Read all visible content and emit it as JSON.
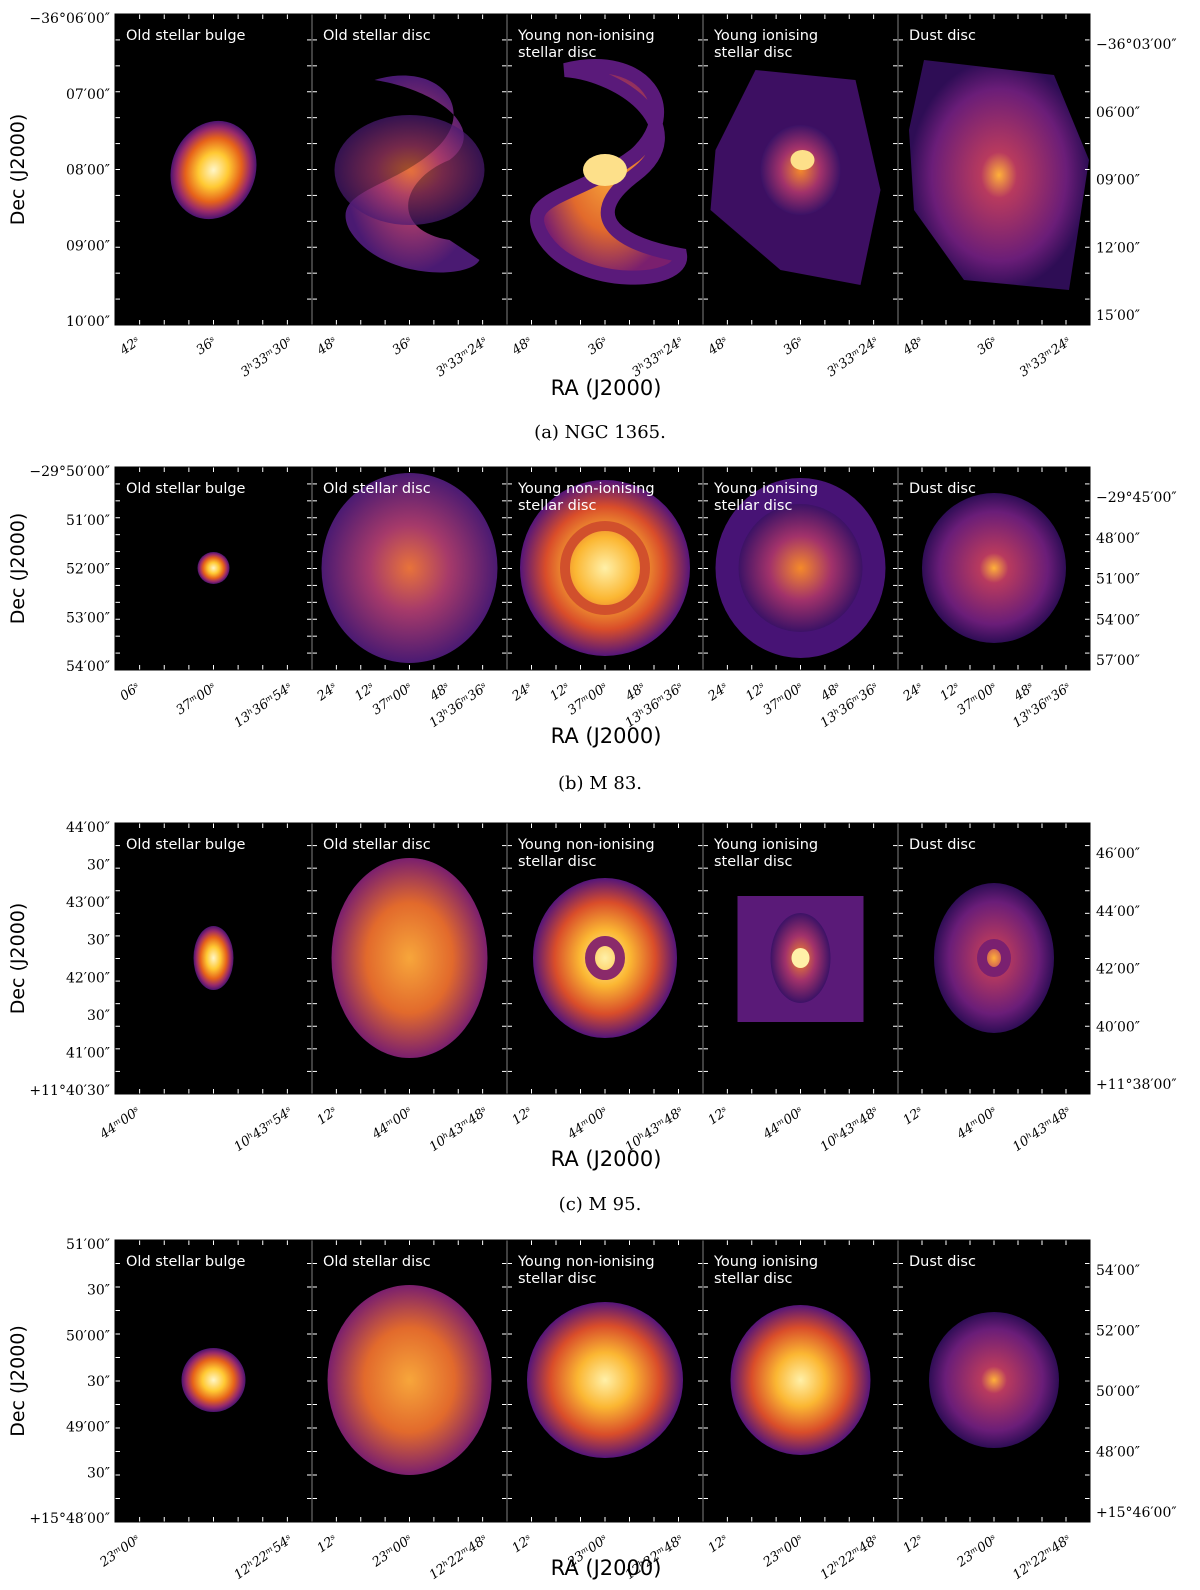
{
  "x_axis_label": "RA (J2000)",
  "y_axis_label": "Dec (J2000)",
  "colors": {
    "panel_bg": "#000000",
    "divider": "#555555",
    "tick": "#ffffff",
    "label": "#ffffff"
  },
  "panel_titles": [
    "Old stellar bulge",
    "Old stellar disc",
    "Young non-ionising stellar disc",
    "Young ionising stellar disc",
    "Dust disc"
  ],
  "rows": [
    {
      "caption": "(a) NGC 1365.",
      "titles": [
        [
          "Old stellar bulge"
        ],
        [
          "Old stellar disc"
        ],
        [
          "Young non-ionising",
          "stellar disc"
        ],
        [
          "Young ionising",
          "stellar disc"
        ],
        [
          "Dust disc"
        ]
      ],
      "left_ticks": [
        "−36°06′00″",
        "07′00″",
        "08′00″",
        "09′00″",
        "10′00″"
      ],
      "right_ticks": [
        "−36°03′00″",
        "06′00″",
        "09′00″",
        "12′00″",
        "15′00″"
      ],
      "bottom_ticks": [
        [
          "42ˢ",
          "36ˢ",
          "3ʰ33ᵐ30ˢ"
        ],
        [
          "48ˢ",
          "36ˢ",
          "3ʰ33ᵐ24ˢ"
        ],
        [
          "48ˢ",
          "36ˢ",
          "3ʰ33ᵐ24ˢ"
        ],
        [
          "48ˢ",
          "36ˢ",
          "3ʰ33ᵐ24ˢ"
        ],
        [
          "48ˢ",
          "36ˢ",
          "3ʰ33ᵐ24ˢ"
        ]
      ]
    },
    {
      "caption": "(b) M 83.",
      "titles": [
        [
          "Old stellar bulge"
        ],
        [
          "Old stellar disc"
        ],
        [
          "Young non-ionising",
          "stellar disc"
        ],
        [
          "Young ionising",
          "stellar disc"
        ],
        [
          "Dust disc"
        ]
      ],
      "left_ticks": [
        "−29°50′00″",
        "51′00″",
        "52′00″",
        "53′00″",
        "54′00″"
      ],
      "right_ticks": [
        "−29°45′00″",
        "48′00″",
        "51′00″",
        "54′00″",
        "57′00″"
      ],
      "bottom_ticks": [
        [
          "06ˢ",
          "37ᵐ00ˢ",
          "13ʰ36ᵐ54ˢ"
        ],
        [
          "24ˢ",
          "12ˢ",
          "37ᵐ00ˢ",
          "48ˢ",
          "13ʰ36ᵐ36ˢ"
        ],
        [
          "24ˢ",
          "12ˢ",
          "37ᵐ00ˢ",
          "48ˢ",
          "13ʰ36ᵐ36ˢ"
        ],
        [
          "24ˢ",
          "12ˢ",
          "37ᵐ00ˢ",
          "48ˢ",
          "13ʰ36ᵐ36ˢ"
        ],
        [
          "24ˢ",
          "12ˢ",
          "37ᵐ00ˢ",
          "48ˢ",
          "13ʰ36ᵐ36ˢ"
        ]
      ]
    },
    {
      "caption": "(c) M 95.",
      "titles": [
        [
          "Old stellar bulge"
        ],
        [
          "Old stellar disc"
        ],
        [
          "Young non-ionising",
          "stellar disc"
        ],
        [
          "Young ionising",
          "stellar disc"
        ],
        [
          "Dust disc"
        ]
      ],
      "left_ticks": [
        "44′00″",
        "30″",
        "43′00″",
        "30″",
        "42′00″",
        "30″",
        "41′00″",
        "+11°40′30″"
      ],
      "right_ticks": [
        "46′00″",
        "44′00″",
        "42′00″",
        "40′00″",
        "+11°38′00″"
      ],
      "bottom_ticks": [
        [
          "44ᵐ00ˢ",
          "10ʰ43ᵐ54ˢ"
        ],
        [
          "12ˢ",
          "44ᵐ00ˢ",
          "10ʰ43ᵐ48ˢ"
        ],
        [
          "12ˢ",
          "44ᵐ00ˢ",
          "10ʰ43ᵐ48ˢ"
        ],
        [
          "12ˢ",
          "44ᵐ00ˢ",
          "10ʰ43ᵐ48ˢ"
        ],
        [
          "12ˢ",
          "44ᵐ00ˢ",
          "10ʰ43ᵐ48ˢ"
        ]
      ]
    },
    {
      "caption": "",
      "titles": [
        [
          "Old stellar bulge"
        ],
        [
          "Old stellar disc"
        ],
        [
          "Young non-ionising",
          "stellar disc"
        ],
        [
          "Young ionising",
          "stellar disc"
        ],
        [
          "Dust disc"
        ]
      ],
      "left_ticks": [
        "51′00″",
        "30″",
        "50′00″",
        "30″",
        "49′00″",
        "30″",
        "+15°48′00″"
      ],
      "right_ticks": [
        "54′00″",
        "52′00″",
        "50′00″",
        "48′00″",
        "+15°46′00″"
      ],
      "bottom_ticks": [
        [
          "23ᵐ00ˢ",
          "12ʰ22ᵐ54ˢ"
        ],
        [
          "12ˢ",
          "23ᵐ00ˢ",
          "12ʰ22ᵐ48ˢ"
        ],
        [
          "12ˢ",
          "23ᵐ00ˢ",
          "12ʰ22ᵐ48ˢ"
        ],
        [
          "12ˢ",
          "23ᵐ00ˢ",
          "12ʰ22ᵐ48ˢ"
        ],
        [
          "12ˢ",
          "23ᵐ00ˢ",
          "12ʰ22ᵐ48ˢ"
        ]
      ]
    }
  ]
}
